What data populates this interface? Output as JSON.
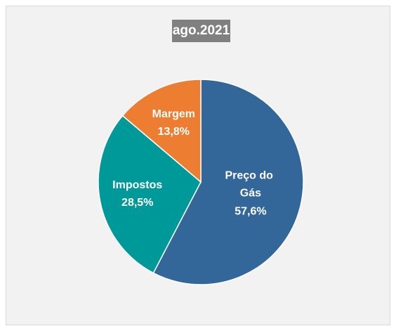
{
  "chart_data": {
    "type": "pie",
    "title": "ago.2021",
    "categories": [
      "Preço do Gás",
      "Impostos",
      "Margem"
    ],
    "values": [
      57.6,
      28.5,
      13.8
    ],
    "value_labels": [
      "57,6%",
      "28,5%",
      "13,8%"
    ],
    "colors": [
      "#336699",
      "#009999",
      "#ed7d31"
    ]
  }
}
